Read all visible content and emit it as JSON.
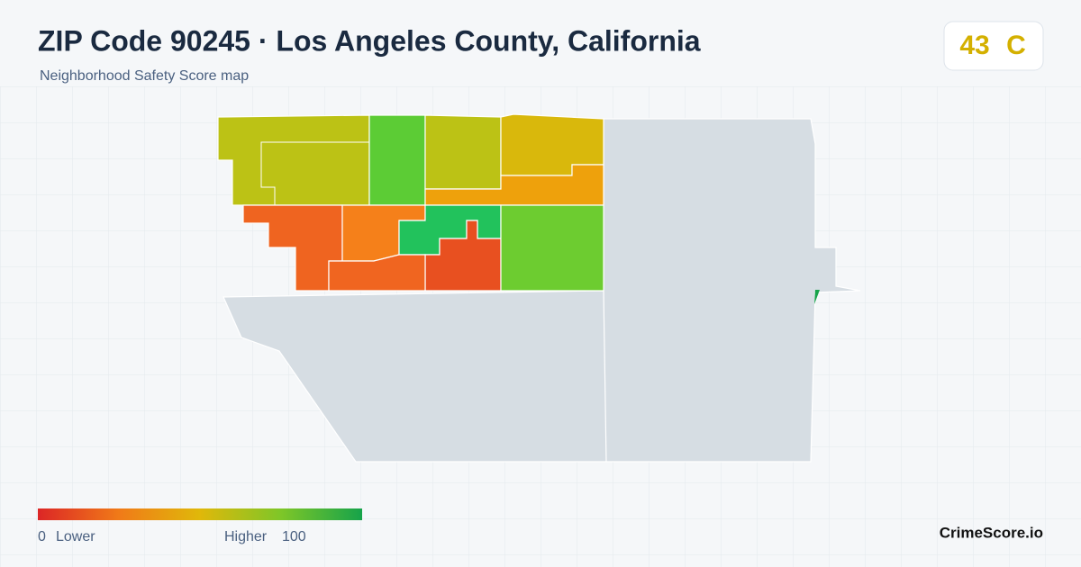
{
  "header": {
    "title": "ZIP Code 90245 · Los Angeles County, California",
    "subtitle": "Neighborhood Safety Score map"
  },
  "badge": {
    "score": "43",
    "grade": "C"
  },
  "legend": {
    "min": "0",
    "min_label": "Lower",
    "max_label": "Higher",
    "max": "100"
  },
  "brand": "CrimeScore.io"
}
